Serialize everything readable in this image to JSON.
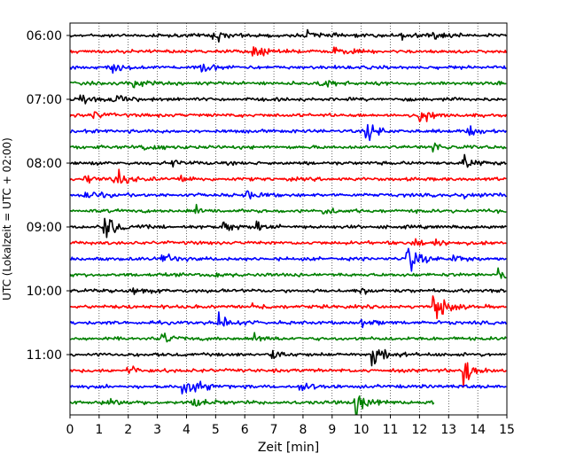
{
  "chart_data": {
    "type": "line",
    "title": "",
    "xlabel": "Zeit  [min]",
    "ylabel": "UTC (Lokalzeit = UTC + 02:00)",
    "xlim": [
      0,
      15
    ],
    "x_ticks": [
      "0",
      "1",
      "2",
      "3",
      "4",
      "5",
      "6",
      "7",
      "8",
      "9",
      "10",
      "11",
      "12",
      "13",
      "14",
      "15"
    ],
    "y_ticks": [
      "06:00",
      "07:00",
      "08:00",
      "09:00",
      "10:00",
      "11:00"
    ],
    "grid": "vertical dotted",
    "legend": "none",
    "colors": [
      "#000000",
      "#ff0000",
      "#0000ff",
      "#008000"
    ],
    "traces": [
      {
        "start": "06:00",
        "color": "#000000",
        "events": [
          {
            "t": 4.85,
            "amp": 1.0
          },
          {
            "t": 8.2,
            "amp": 0.6
          },
          {
            "t": 11.4,
            "amp": 0.7
          },
          {
            "t": 12.5,
            "amp": 0.5
          }
        ]
      },
      {
        "start": "06:15",
        "color": "#ff0000",
        "events": [
          {
            "t": 6.3,
            "amp": 0.9
          },
          {
            "t": 9.1,
            "amp": 0.5
          }
        ]
      },
      {
        "start": "06:30",
        "color": "#0000ff",
        "events": [
          {
            "t": 1.3,
            "amp": 0.7
          },
          {
            "t": 4.5,
            "amp": 0.7
          }
        ]
      },
      {
        "start": "06:45",
        "color": "#008000",
        "events": [
          {
            "t": 2.2,
            "amp": 0.6
          },
          {
            "t": 8.6,
            "amp": 0.8
          }
        ]
      },
      {
        "start": "07:00",
        "color": "#000000",
        "events": [
          {
            "t": 0.3,
            "amp": 1.1
          },
          {
            "t": 1.5,
            "amp": 0.6
          }
        ]
      },
      {
        "start": "07:15",
        "color": "#ff0000",
        "events": [
          {
            "t": 12.0,
            "amp": 1.1
          },
          {
            "t": 0.8,
            "amp": 0.4
          }
        ]
      },
      {
        "start": "07:30",
        "color": "#0000ff",
        "events": [
          {
            "t": 10.2,
            "amp": 1.1
          },
          {
            "t": 13.7,
            "amp": 0.6
          }
        ]
      },
      {
        "start": "07:45",
        "color": "#008000",
        "events": [
          {
            "t": 2.6,
            "amp": 0.6
          },
          {
            "t": 12.5,
            "amp": 0.6
          }
        ]
      },
      {
        "start": "08:00",
        "color": "#000000",
        "events": [
          {
            "t": 13.5,
            "amp": 1.0
          },
          {
            "t": 3.5,
            "amp": 0.4
          }
        ]
      },
      {
        "start": "08:15",
        "color": "#ff0000",
        "events": [
          {
            "t": 1.5,
            "amp": 1.6
          },
          {
            "t": 0.5,
            "amp": 0.6
          },
          {
            "t": 3.7,
            "amp": 0.6
          }
        ]
      },
      {
        "start": "08:30",
        "color": "#0000ff",
        "events": [
          {
            "t": 0.5,
            "amp": 0.8
          },
          {
            "t": 6.0,
            "amp": 0.6
          },
          {
            "t": 13.5,
            "amp": 0.7
          }
        ]
      },
      {
        "start": "08:45",
        "color": "#008000",
        "events": [
          {
            "t": 4.3,
            "amp": 0.6
          },
          {
            "t": 8.7,
            "amp": 0.5
          }
        ]
      },
      {
        "start": "09:00",
        "color": "#000000",
        "events": [
          {
            "t": 1.2,
            "amp": 1.9
          },
          {
            "t": 5.3,
            "amp": 0.7
          },
          {
            "t": 6.4,
            "amp": 0.6
          }
        ]
      },
      {
        "start": "09:15",
        "color": "#ff0000",
        "events": [
          {
            "t": 11.8,
            "amp": 0.9
          },
          {
            "t": 12.6,
            "amp": 0.4
          }
        ]
      },
      {
        "start": "09:30",
        "color": "#0000ff",
        "events": [
          {
            "t": 11.6,
            "amp": 2.0
          },
          {
            "t": 3.2,
            "amp": 0.7
          },
          {
            "t": 13.2,
            "amp": 0.5
          }
        ]
      },
      {
        "start": "09:45",
        "color": "#008000",
        "events": [
          {
            "t": 14.7,
            "amp": 0.8
          },
          {
            "t": 4.8,
            "amp": 0.4
          }
        ]
      },
      {
        "start": "10:00",
        "color": "#000000",
        "events": [
          {
            "t": 2.2,
            "amp": 0.5
          },
          {
            "t": 10.0,
            "amp": 0.5
          }
        ]
      },
      {
        "start": "10:15",
        "color": "#ff0000",
        "events": [
          {
            "t": 12.5,
            "amp": 2.2
          },
          {
            "t": 6.3,
            "amp": 0.5
          }
        ]
      },
      {
        "start": "10:30",
        "color": "#0000ff",
        "events": [
          {
            "t": 5.1,
            "amp": 1.2
          },
          {
            "t": 10.0,
            "amp": 0.5
          }
        ]
      },
      {
        "start": "10:45",
        "color": "#008000",
        "events": [
          {
            "t": 3.2,
            "amp": 0.7
          },
          {
            "t": 6.3,
            "amp": 0.6
          }
        ]
      },
      {
        "start": "11:00",
        "color": "#000000",
        "events": [
          {
            "t": 10.4,
            "amp": 1.8
          },
          {
            "t": 6.9,
            "amp": 0.6
          }
        ]
      },
      {
        "start": "11:15",
        "color": "#ff0000",
        "events": [
          {
            "t": 13.5,
            "amp": 2.3
          },
          {
            "t": 2.0,
            "amp": 0.6
          }
        ]
      },
      {
        "start": "11:30",
        "color": "#0000ff",
        "events": [
          {
            "t": 3.9,
            "amp": 1.0
          },
          {
            "t": 7.9,
            "amp": 0.8
          },
          {
            "t": 4.3,
            "amp": 0.5
          }
        ]
      },
      {
        "start": "11:45",
        "color": "#008000",
        "events": [
          {
            "t": 9.8,
            "amp": 2.0
          },
          {
            "t": 1.3,
            "amp": 0.8
          },
          {
            "t": 4.2,
            "amp": 0.8
          }
        ],
        "end_min": 12.5
      }
    ]
  }
}
